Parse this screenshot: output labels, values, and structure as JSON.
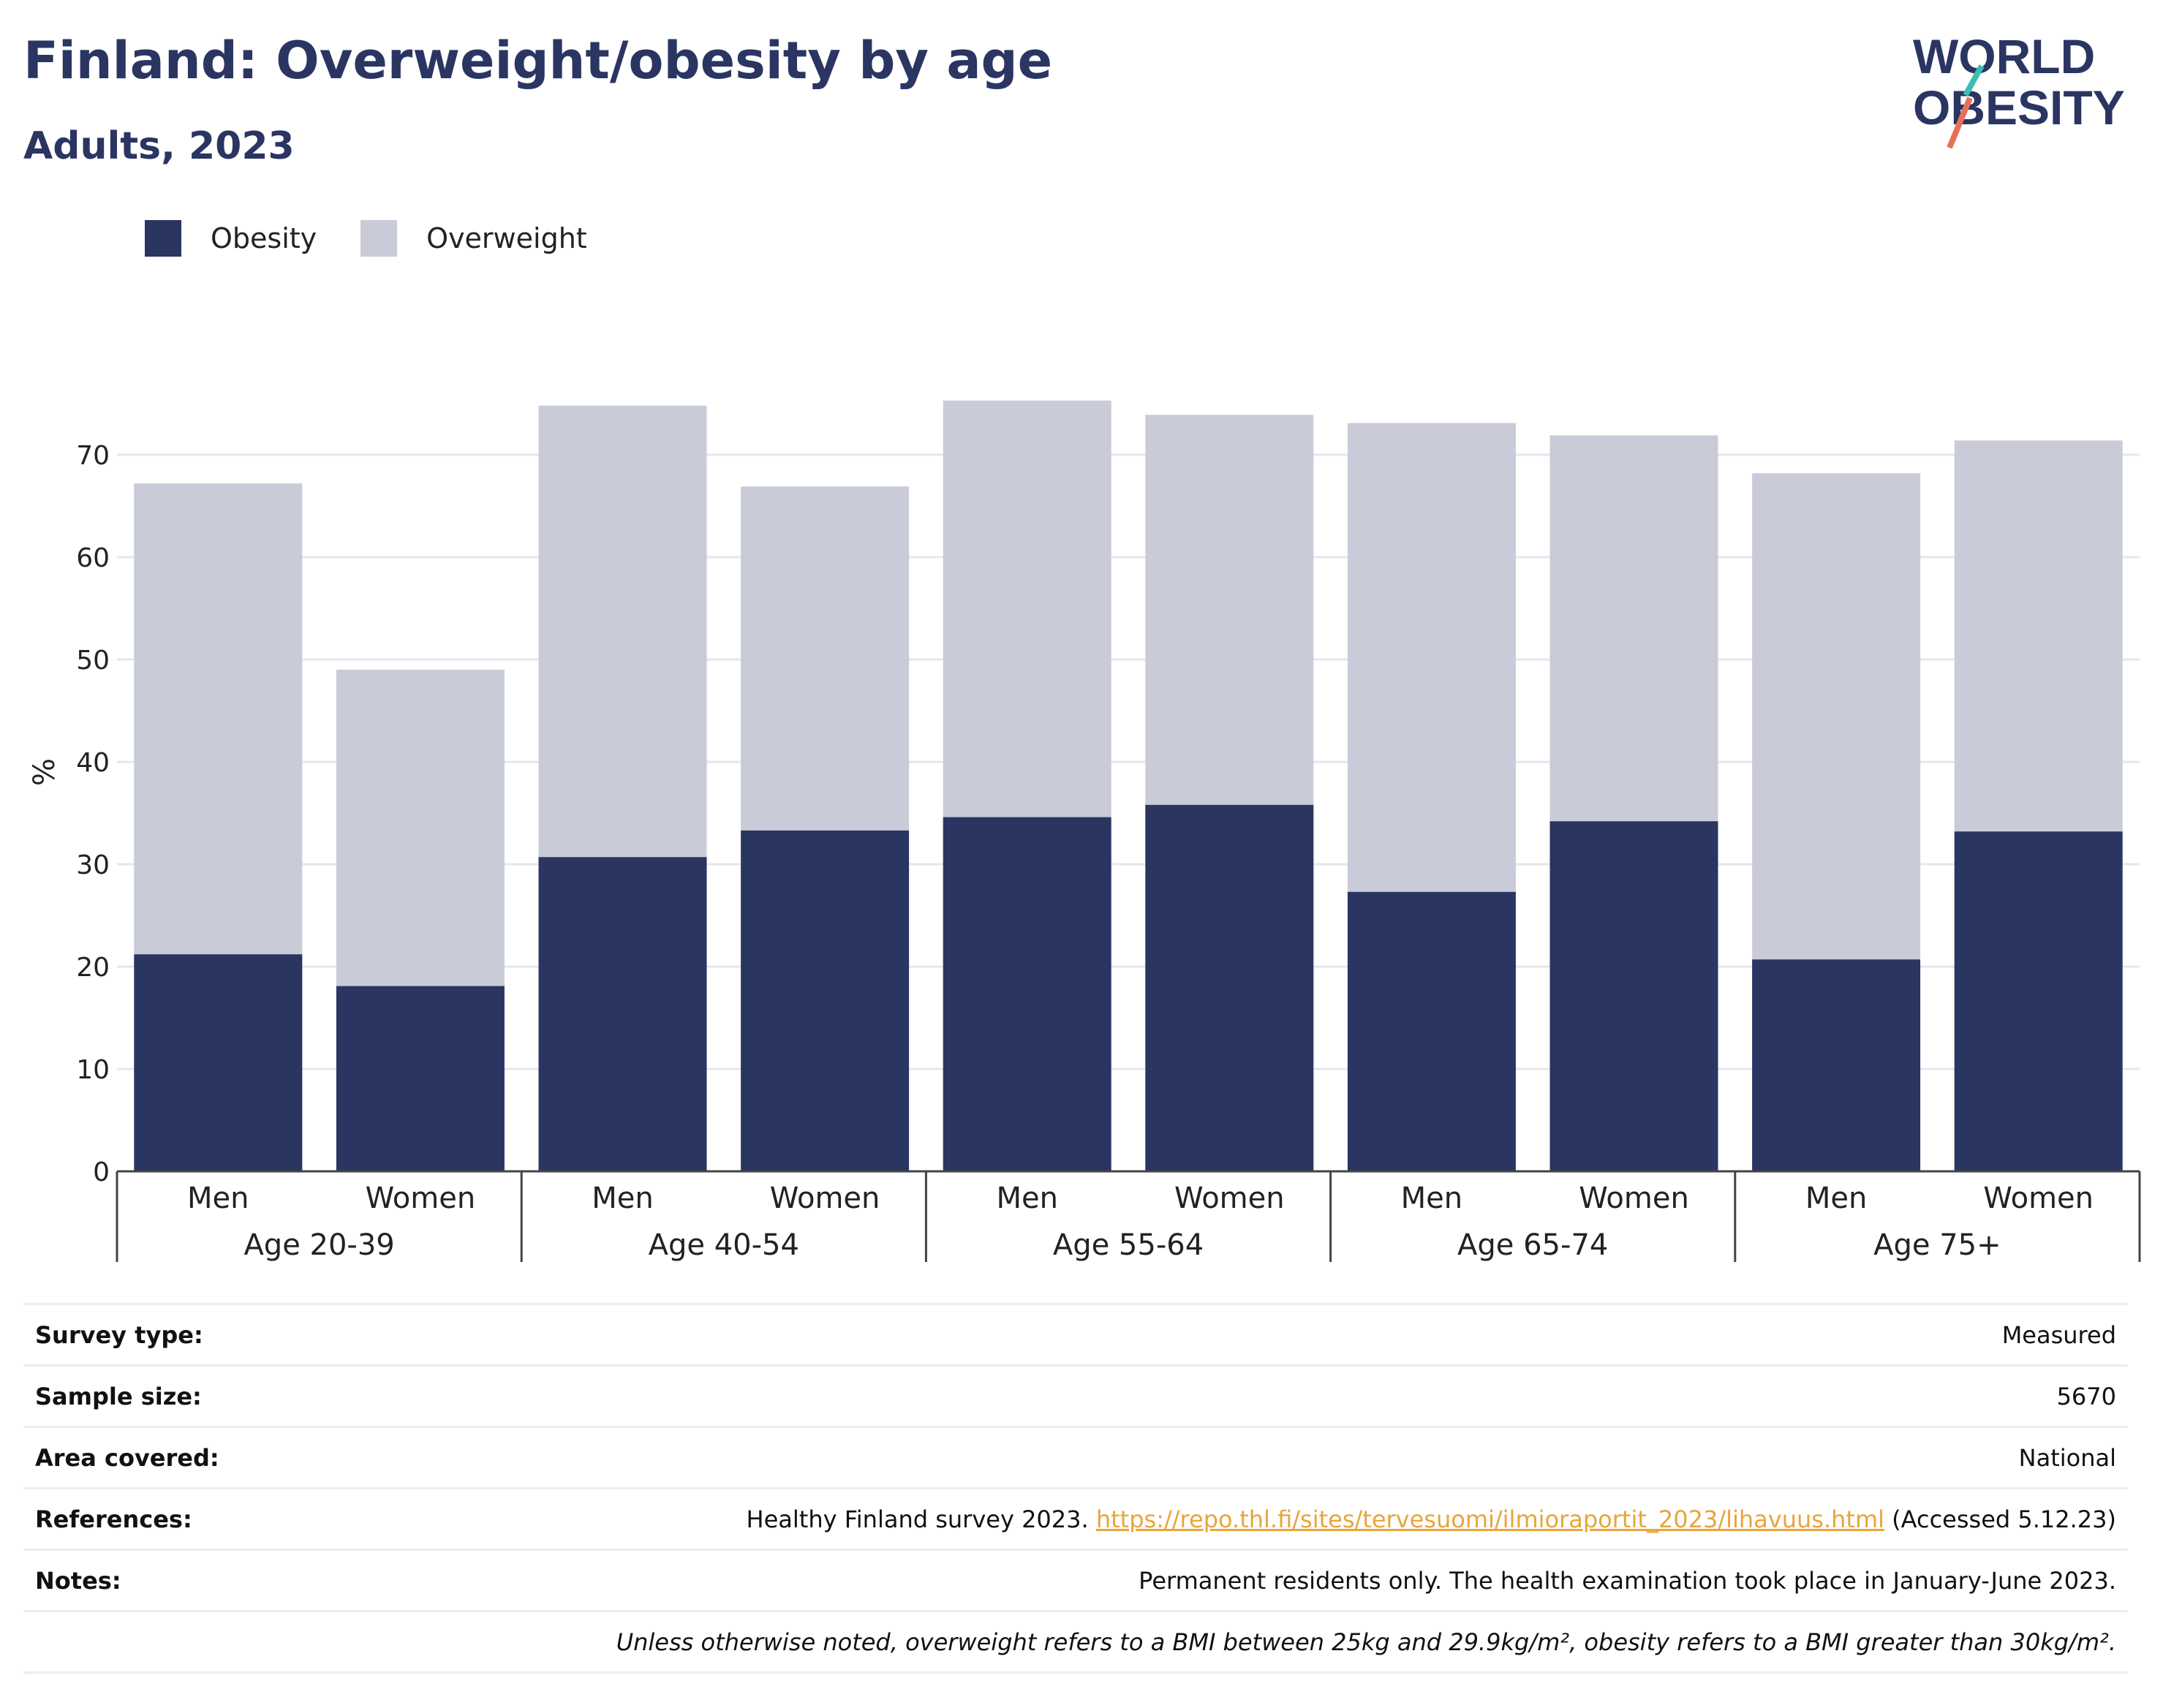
{
  "title": "Finland: Overweight/obesity by age",
  "subtitle": "Adults, 2023",
  "logo": {
    "line1": "WORLD",
    "line2": "OBESITY",
    "colors": {
      "text": "#2a3562",
      "slash_top": "#3bbfb3",
      "slash_bottom": "#e8705a"
    }
  },
  "legend": [
    {
      "name": "Obesity",
      "color": "#2a3562"
    },
    {
      "name": "Overweight",
      "color": "#c9cbd8"
    }
  ],
  "chart_data": {
    "type": "bar",
    "stacked": true,
    "ylabel": "%",
    "ylim": [
      0,
      78
    ],
    "yticks": [
      0,
      10,
      20,
      30,
      40,
      50,
      60,
      70
    ],
    "grid": true,
    "legend_position": "top-left",
    "groups": [
      "Age 20-39",
      "Age 40-54",
      "Age 55-64",
      "Age 65-74",
      "Age 75+"
    ],
    "categories": [
      "Men",
      "Women",
      "Men",
      "Women",
      "Men",
      "Women",
      "Men",
      "Women",
      "Men",
      "Women"
    ],
    "series": [
      {
        "name": "Obesity",
        "color": "#2a3562",
        "values": [
          21.2,
          18.1,
          30.7,
          33.3,
          34.6,
          35.8,
          27.3,
          34.2,
          20.7,
          33.2
        ]
      },
      {
        "name": "Overweight",
        "color": "#c9cbd8",
        "values": [
          46.0,
          30.9,
          44.1,
          33.6,
          40.7,
          38.1,
          45.8,
          37.7,
          47.5,
          38.2
        ]
      }
    ]
  },
  "info": {
    "survey_type": {
      "label": "Survey type:",
      "value": "Measured"
    },
    "sample_size": {
      "label": "Sample size:",
      "value": "5670"
    },
    "area_covered": {
      "label": "Area covered:",
      "value": "National"
    },
    "references": {
      "label": "References:",
      "prefix": "Healthy Finland survey 2023. ",
      "link": "https://repo.thl.fi/sites/tervesuomi/ilmioraportit_2023/lihavuus.html",
      "suffix": " (Accessed 5.12.23)"
    },
    "notes": {
      "label": "Notes:",
      "value": "Permanent residents only. The health examination took place in January-June 2023."
    },
    "footnote": "Unless otherwise noted, overweight refers to a BMI between 25kg and 29.9kg/m², obesity refers to a BMI greater than 30kg/m²."
  }
}
